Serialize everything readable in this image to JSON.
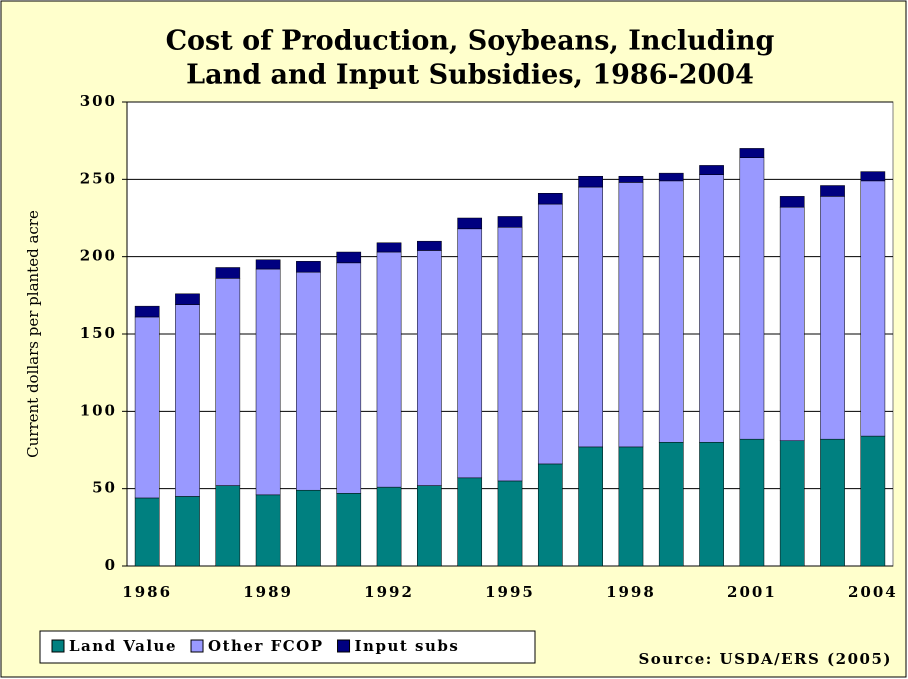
{
  "chart_data": {
    "type": "stacked_bar",
    "title": [
      "Cost of Production, Soybeans, Including",
      "Land and Input Subsidies, 1986-2004"
    ],
    "y_label": "Current dollars per planted acre",
    "source": "Source: USDA/ERS (2005)",
    "categories": [
      "1986",
      null,
      null,
      "1989",
      null,
      null,
      "1992",
      null,
      null,
      "1995",
      null,
      null,
      "1998",
      null,
      null,
      "2001",
      null,
      null,
      "2004"
    ],
    "series": [
      {
        "name": "Land Value",
        "color": "#008080",
        "values": [
          44,
          45,
          52,
          46,
          49,
          47,
          51,
          52,
          57,
          55,
          66,
          77,
          77,
          80,
          80,
          82,
          81,
          82,
          84
        ]
      },
      {
        "name": "Other FCOP",
        "color": "#9999ff",
        "values": [
          117,
          124,
          134,
          146,
          141,
          149,
          152,
          152,
          161,
          164,
          168,
          168,
          171,
          169,
          173,
          182,
          151,
          157,
          165
        ]
      },
      {
        "name": "Input subs",
        "color": "#000080",
        "values": [
          7,
          7,
          7,
          6,
          7,
          7,
          6,
          6,
          7,
          7,
          7,
          7,
          4,
          5,
          6,
          6,
          7,
          7,
          6
        ]
      }
    ],
    "ylim": [
      0,
      300
    ],
    "yticks": [
      0,
      50,
      100,
      150,
      200,
      250,
      300
    ],
    "grid": true,
    "legend": "bottom-left"
  }
}
